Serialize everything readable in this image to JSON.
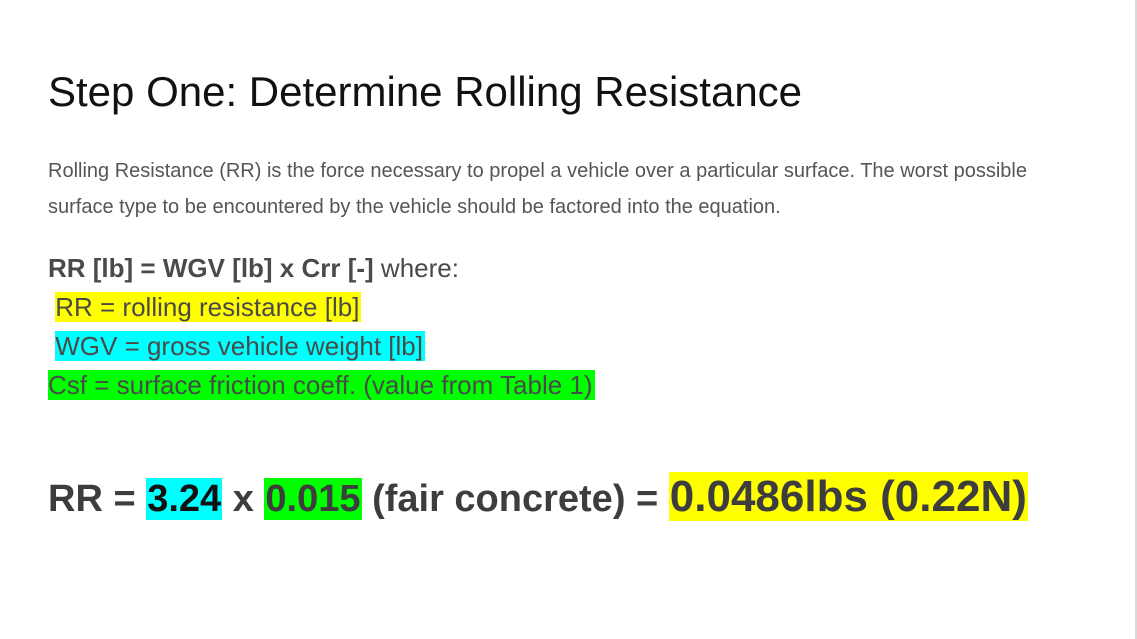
{
  "heading": "Step One: Determine Rolling Resistance",
  "intro": "Rolling Resistance (RR) is the force necessary to propel a vehicle over a particular surface. The worst possible surface type to be encountered by the vehicle should be factored into the equation.",
  "formula": {
    "equation": "RR [lb] = WGV [lb] x Crr [-]",
    "suffix": " where:"
  },
  "definitions": {
    "rr": "RR = rolling resistance [lb]",
    "wgv": "WGV = gross vehicle weight [lb]",
    "csf": "Csf = surface friction coeff. (value from Table 1)"
  },
  "calculation": {
    "lhs": "RR = ",
    "weight": "3.24",
    "times": " x ",
    "coeff": "0.015",
    "surface": " (fair concrete) = ",
    "result": "0.0486lbs (0.22N)"
  },
  "colors": {
    "yellow": "#ffff00",
    "cyan": "#00ffff",
    "green": "#00ff00"
  }
}
